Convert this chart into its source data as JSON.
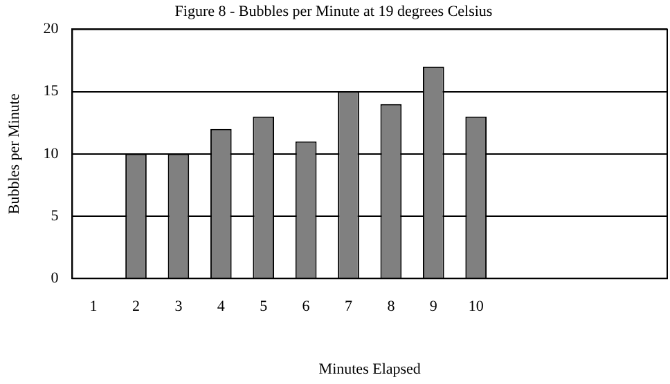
{
  "chart_data": {
    "type": "bar",
    "title": "Figure 8 - Bubbles per Minute at 19 degrees Celsius",
    "xlabel": "Minutes Elapsed",
    "ylabel": "Bubbles per Minute",
    "categories": [
      "1",
      "2",
      "3",
      "4",
      "5",
      "6",
      "7",
      "8",
      "9",
      "10",
      null,
      null,
      null,
      null
    ],
    "series": [
      {
        "color": "#808080",
        "values": [
          null,
          10,
          10,
          12,
          13,
          11,
          15,
          14,
          17,
          13,
          null,
          null,
          null,
          null
        ]
      }
    ],
    "ylim": [
      0,
      20
    ],
    "yticks": [
      0,
      5,
      10,
      15,
      20
    ],
    "grid": "y",
    "legend": false
  }
}
